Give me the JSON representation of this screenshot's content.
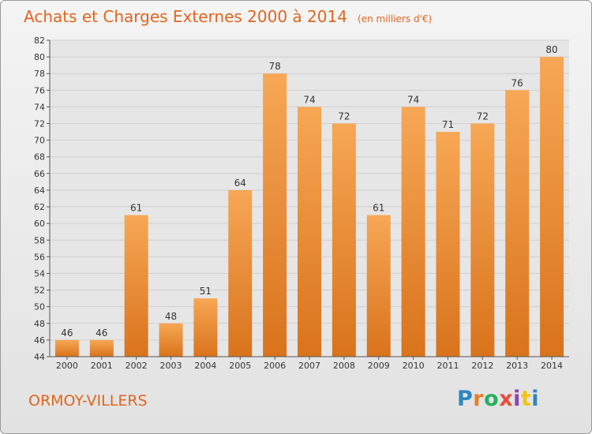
{
  "header": {
    "title": "Achats et Charges Externes 2000 à 2014",
    "unit": "(en milliers d'€)"
  },
  "footer": {
    "place": "ORMOY-VILLERS",
    "logo_text": "Proxiti",
    "logo_colors": [
      "#2e86c1",
      "#e67e22",
      "#27ae60",
      "#e74c3c",
      "#8e44ad",
      "#f1c40f",
      "#2e86c1"
    ]
  },
  "colors": {
    "accent": "#e0661f",
    "bar_light": "#f7a755",
    "bar_dark": "#d9731c",
    "grid": "#cfcfcf"
  },
  "chart_data": {
    "type": "bar",
    "title": "Achats et Charges Externes 2000 à 2014",
    "subtitle": "(en milliers d'€)",
    "xlabel": "",
    "ylabel": "",
    "categories": [
      "2000",
      "2001",
      "2002",
      "2003",
      "2004",
      "2005",
      "2006",
      "2007",
      "2008",
      "2009",
      "2010",
      "2011",
      "2012",
      "2013",
      "2014"
    ],
    "values": [
      46,
      46,
      61,
      48,
      51,
      64,
      78,
      74,
      72,
      61,
      74,
      71,
      72,
      76,
      80
    ],
    "ylim": [
      44,
      82
    ],
    "yticks": [
      44,
      46,
      48,
      50,
      52,
      54,
      56,
      58,
      60,
      62,
      64,
      66,
      68,
      70,
      72,
      74,
      76,
      78,
      80,
      82
    ],
    "grid": true,
    "data_labels": true
  }
}
